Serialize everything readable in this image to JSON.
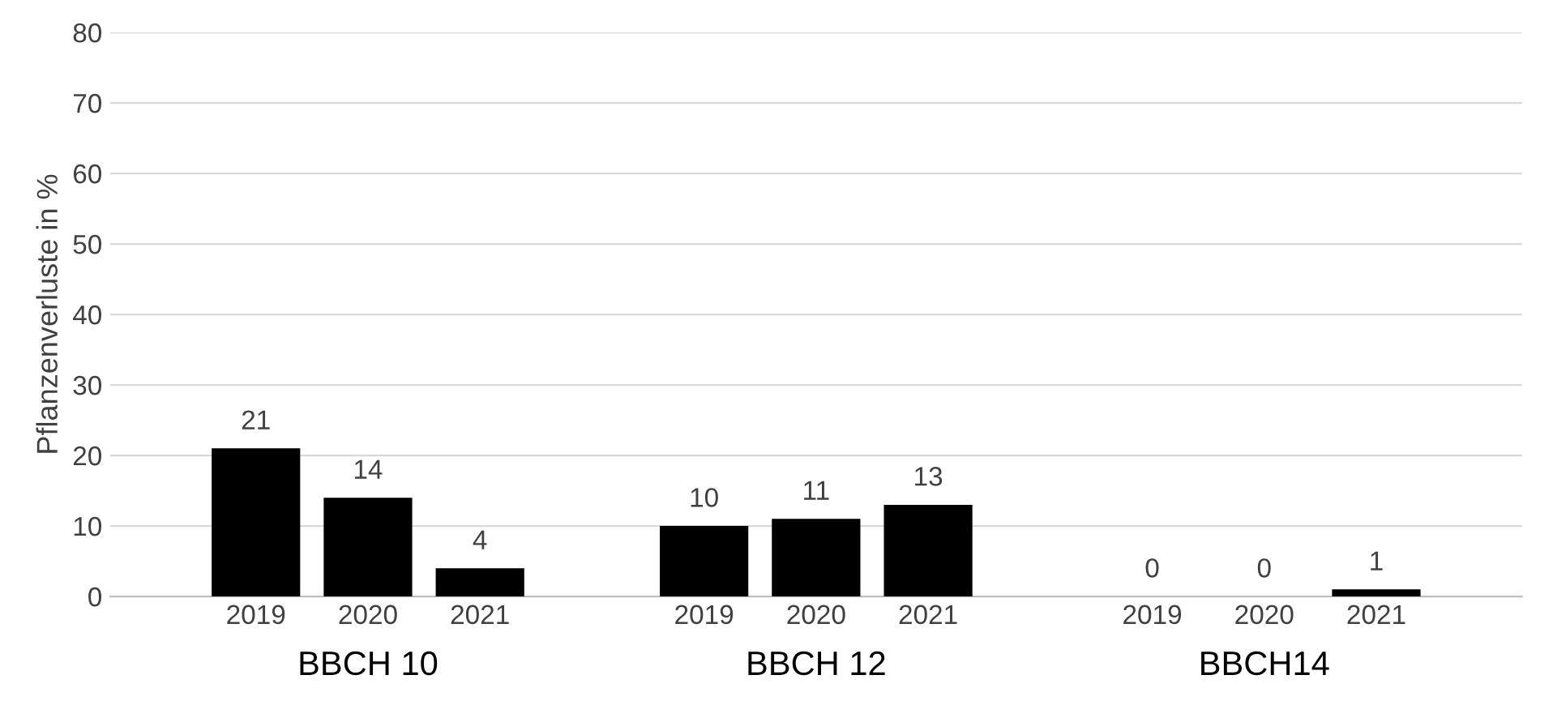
{
  "chart_data": {
    "type": "bar",
    "ylabel": "Pflanzenverluste in %",
    "categories": [
      "2019",
      "2020",
      "2021",
      null,
      "2019",
      "2020",
      "2021",
      null,
      "2019",
      "2020",
      "2021"
    ],
    "values": [
      21,
      14,
      4,
      null,
      10,
      11,
      13,
      null,
      0,
      0,
      1
    ],
    "color": "#000000",
    "ylim": [
      0,
      80
    ],
    "yticks": [
      0,
      10,
      20,
      30,
      40,
      50,
      60,
      70,
      80
    ],
    "grid": "y",
    "data_labels": true,
    "annotations": [
      "BBCH 10",
      "BBCH 12",
      "BBCH14"
    ]
  }
}
